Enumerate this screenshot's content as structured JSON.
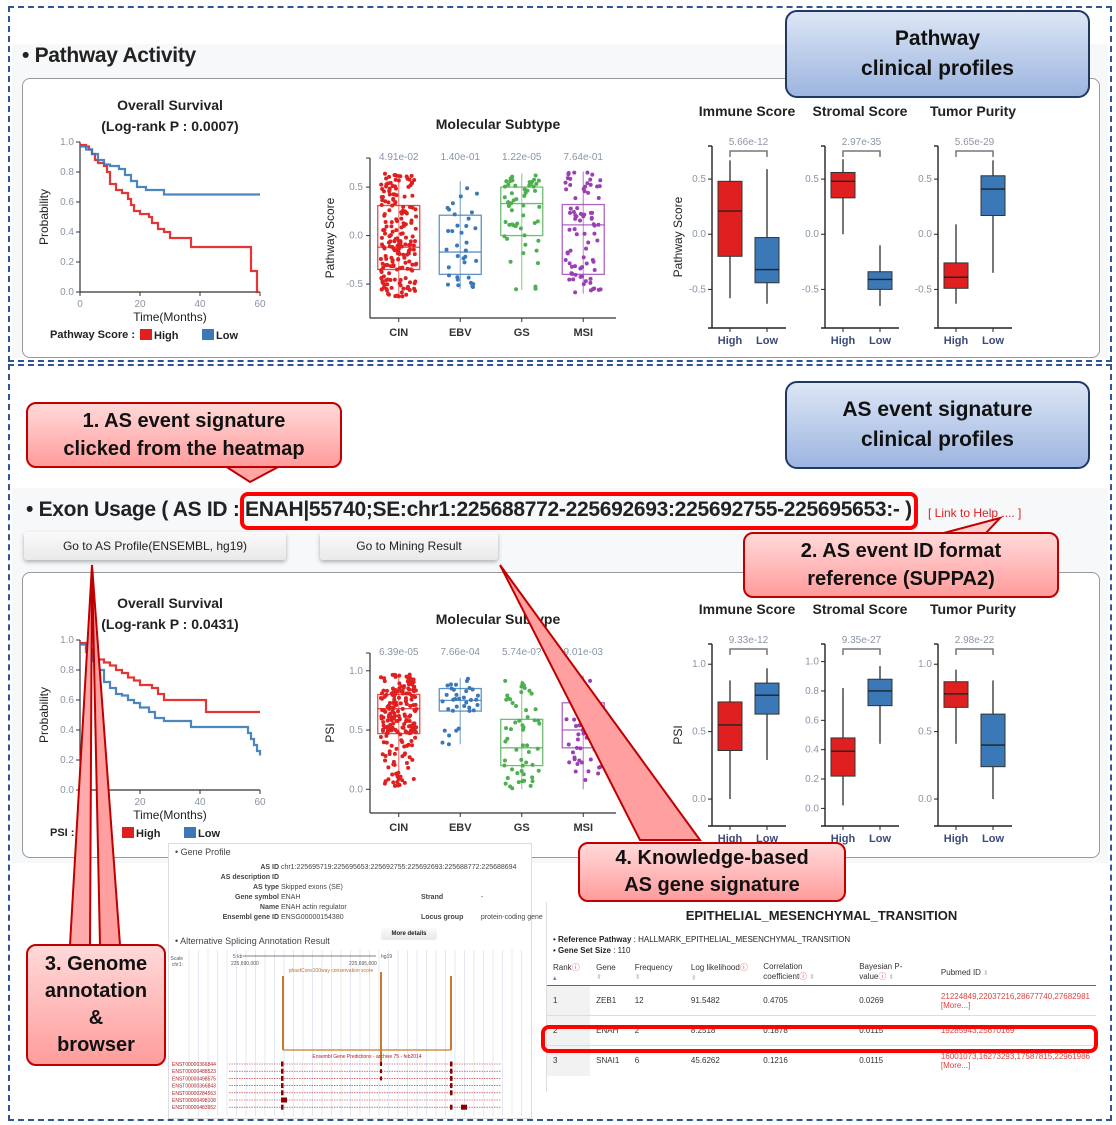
{
  "callouts": {
    "pathway": "Pathway\nclinical profiles",
    "as_event": "AS event signature\nclinical profiles",
    "c1": "1. AS event signature\nclicked from the heatmap",
    "c2": "2. AS event ID format\nreference (SUPPA2)",
    "c3": "3. Genome\nannotation\n&\nbrowser",
    "c4": "4. Knowledge-based\nAS gene signature"
  },
  "pathway_section": {
    "title": "• Pathway Activity"
  },
  "exon_section": {
    "title_prefix": "• Exon Usage ( AS ID : ",
    "as_id": "ENAH|55740;SE:chr1:225688772-225692693:225692755-225695653:-",
    "title_suffix": " )",
    "help_link": "[ Link to Help .... ]",
    "btn_profile": "Go to AS Profile(ENSEMBL, hg19)",
    "btn_mining": "Go to Mining Result"
  },
  "colors": {
    "high": "#e02020",
    "low": "#3a78b8",
    "cin": "#e02020",
    "ebv": "#3a78b8",
    "gs": "#4caf50",
    "msi": "#9b3fb5",
    "callout_red": "#ff9c9c",
    "callout_blue": "#9db5e0"
  },
  "chart_data": [
    {
      "id": "pw_km",
      "type": "line",
      "title": "Overall Survival",
      "subtitle": "(Log-rank P : 0.0007)",
      "xlabel": "Time(Months)",
      "ylabel": "Probability",
      "xlim": [
        0,
        60
      ],
      "ylim": [
        0,
        1.0
      ],
      "xticks": [
        0,
        20,
        40,
        60
      ],
      "yticks": [
        0.0,
        0.2,
        0.4,
        0.6,
        0.8,
        1.0
      ],
      "legend_label": "Pathway Score :",
      "series": [
        {
          "name": "High",
          "color": "#e02020",
          "x": [
            0,
            2,
            3,
            4,
            5,
            6,
            8,
            9,
            10,
            12,
            14,
            16,
            17,
            18,
            20,
            23,
            24,
            26,
            28,
            30,
            33,
            37,
            40,
            43,
            50,
            57,
            58,
            59,
            59.5
          ],
          "y": [
            0.98,
            0.97,
            0.95,
            0.92,
            0.88,
            0.86,
            0.84,
            0.8,
            0.72,
            0.68,
            0.66,
            0.62,
            0.58,
            0.54,
            0.52,
            0.5,
            0.46,
            0.42,
            0.4,
            0.36,
            0.36,
            0.3,
            0.3,
            0.3,
            0.3,
            0.14,
            0.14,
            0.0,
            0.0
          ]
        },
        {
          "name": "Low",
          "color": "#3a78b8",
          "x": [
            0,
            2,
            4,
            6,
            8,
            10,
            13,
            15,
            17,
            19,
            22,
            26,
            28,
            35,
            45,
            60
          ],
          "y": [
            0.97,
            0.95,
            0.92,
            0.88,
            0.85,
            0.84,
            0.82,
            0.78,
            0.74,
            0.7,
            0.68,
            0.68,
            0.65,
            0.65,
            0.65,
            0.65
          ]
        }
      ]
    },
    {
      "id": "pw_subtype",
      "type": "scatter",
      "title": "Molecular Subtype",
      "ylabel": "Pathway Score",
      "ylim": [
        -0.85,
        0.8
      ],
      "yticks": [
        -0.5,
        0.0,
        0.5
      ],
      "categories": [
        "CIN",
        "EBV",
        "GS",
        "MSI"
      ],
      "pvalues": [
        "4.91e-02",
        "1.40e-01",
        "1.22e-05",
        "7.64e-01"
      ],
      "boxes": [
        {
          "q1": -0.35,
          "median": -0.12,
          "q3": 0.31,
          "min": -0.65,
          "max": 0.64,
          "n": 200
        },
        {
          "q1": -0.4,
          "median": -0.17,
          "q3": 0.21,
          "min": -0.55,
          "max": 0.56,
          "n": 35
        },
        {
          "q1": 0.0,
          "median": 0.33,
          "q3": 0.5,
          "min": -0.56,
          "max": 0.64,
          "n": 55
        },
        {
          "q1": -0.4,
          "median": 0.11,
          "q3": 0.32,
          "min": -0.6,
          "max": 0.66,
          "n": 80
        }
      ]
    },
    {
      "id": "pw_clin",
      "type": "box",
      "ylabel": "Pathway Score",
      "ylim": [
        -0.85,
        0.8
      ],
      "yticks": [
        -0.5,
        0.0,
        0.5
      ],
      "categories": [
        "High",
        "Low"
      ],
      "panels": [
        {
          "title": "Immune Score",
          "pvalue": "5.66e-12",
          "boxes": [
            {
              "q1": -0.2,
              "median": 0.21,
              "q3": 0.48,
              "min": -0.58,
              "max": 0.67
            },
            {
              "q1": -0.44,
              "median": -0.32,
              "q3": -0.03,
              "min": -0.63,
              "max": 0.59
            }
          ]
        },
        {
          "title": "Stromal Score",
          "pvalue": "2.97e-35",
          "boxes": [
            {
              "q1": 0.33,
              "median": 0.48,
              "q3": 0.56,
              "min": 0.0,
              "max": 0.68
            },
            {
              "q1": -0.5,
              "median": -0.41,
              "q3": -0.34,
              "min": -0.65,
              "max": -0.1
            }
          ]
        },
        {
          "title": "Tumor Purity",
          "pvalue": "5.65e-29",
          "boxes": [
            {
              "q1": -0.49,
              "median": -0.39,
              "q3": -0.26,
              "min": -0.63,
              "max": 0.09
            },
            {
              "q1": 0.17,
              "median": 0.41,
              "q3": 0.53,
              "min": -0.35,
              "max": 0.67
            }
          ]
        }
      ]
    },
    {
      "id": "ex_km",
      "type": "line",
      "title": "Overall Survival",
      "subtitle": "(Log-rank P : 0.0431)",
      "xlabel": "Time(Months)",
      "ylabel": "Probability",
      "xlim": [
        0,
        60
      ],
      "ylim": [
        0,
        1.0
      ],
      "xticks": [
        0,
        20,
        40,
        60
      ],
      "yticks": [
        0.0,
        0.2,
        0.4,
        0.6,
        0.8,
        1.0
      ],
      "legend_label": "PSI :",
      "series": [
        {
          "name": "High",
          "color": "#e02020",
          "x": [
            0,
            2,
            4,
            6,
            8,
            10,
            12,
            14,
            16,
            18,
            20,
            24,
            26,
            28,
            35,
            42,
            50,
            60
          ],
          "y": [
            0.98,
            0.94,
            0.9,
            0.87,
            0.85,
            0.83,
            0.8,
            0.78,
            0.75,
            0.73,
            0.7,
            0.68,
            0.64,
            0.6,
            0.6,
            0.52,
            0.52,
            0.52
          ]
        },
        {
          "name": "Low",
          "color": "#3a78b8",
          "x": [
            0,
            2,
            4,
            6,
            8,
            10,
            12,
            14,
            16,
            18,
            20,
            23,
            25,
            28,
            32,
            37,
            45,
            55,
            56,
            57,
            58,
            59,
            60
          ],
          "y": [
            0.97,
            0.92,
            0.86,
            0.8,
            0.72,
            0.68,
            0.64,
            0.63,
            0.6,
            0.58,
            0.55,
            0.52,
            0.48,
            0.46,
            0.46,
            0.42,
            0.42,
            0.42,
            0.38,
            0.34,
            0.3,
            0.26,
            0.23
          ]
        }
      ]
    },
    {
      "id": "ex_subtype",
      "type": "scatter",
      "title": "Molecular Subtype",
      "ylabel": "PSI",
      "ylim": [
        -0.2,
        1.15
      ],
      "yticks": [
        0.0,
        0.5,
        1.0
      ],
      "categories": [
        "CIN",
        "EBV",
        "GS",
        "MSI"
      ],
      "pvalues": [
        "6.39e-05",
        "7.66e-04",
        "5.74e-0?",
        "9.01e-03"
      ],
      "boxes": [
        {
          "q1": 0.47,
          "median": 0.68,
          "q3": 0.8,
          "min": 0.02,
          "max": 0.97,
          "n": 200
        },
        {
          "q1": 0.66,
          "median": 0.75,
          "q3": 0.85,
          "min": 0.38,
          "max": 0.94,
          "n": 35
        },
        {
          "q1": 0.2,
          "median": 0.35,
          "q3": 0.59,
          "min": 0.0,
          "max": 0.92,
          "n": 55
        },
        {
          "q1": 0.35,
          "median": 0.5,
          "q3": 0.73,
          "min": 0.0,
          "max": 0.96,
          "n": 60
        }
      ]
    },
    {
      "id": "ex_clin",
      "type": "box",
      "ylabel": "PSI",
      "categories": [
        "High",
        "Low"
      ],
      "panels": [
        {
          "title": "Immune Score",
          "pvalue": "9.33e-12",
          "ylim": [
            -0.2,
            1.15
          ],
          "yticks": [
            0.0,
            0.5,
            1.0
          ],
          "boxes": [
            {
              "q1": 0.36,
              "median": 0.55,
              "q3": 0.72,
              "min": 0.0,
              "max": 0.88
            },
            {
              "q1": 0.63,
              "median": 0.77,
              "q3": 0.86,
              "min": 0.29,
              "max": 0.97
            }
          ]
        },
        {
          "title": "Stromal Score",
          "pvalue": "9.35e-27",
          "ylim": [
            -0.12,
            1.12
          ],
          "yticks": [
            0.0,
            0.2,
            0.4,
            0.6,
            0.8,
            1.0
          ],
          "boxes": [
            {
              "q1": 0.22,
              "median": 0.39,
              "q3": 0.48,
              "min": 0.02,
              "max": 0.82
            },
            {
              "q1": 0.7,
              "median": 0.8,
              "q3": 0.88,
              "min": 0.44,
              "max": 0.97
            }
          ]
        },
        {
          "title": "Tumor Purity",
          "pvalue": "2.98e-22",
          "ylim": [
            -0.2,
            1.15
          ],
          "yticks": [
            0.0,
            0.5,
            1.0
          ],
          "boxes": [
            {
              "q1": 0.68,
              "median": 0.78,
              "q3": 0.87,
              "min": 0.41,
              "max": 0.96
            },
            {
              "q1": 0.24,
              "median": 0.4,
              "q3": 0.63,
              "min": 0.0,
              "max": 0.88
            }
          ]
        }
      ]
    }
  ],
  "gene_profile": {
    "section_title": "Gene Profile",
    "rows": [
      {
        "k": "AS ID",
        "v": "chr1:225695719:225695653:225692755:225692693:225688772:225688694"
      },
      {
        "k": "AS description ID",
        "v": ""
      },
      {
        "k": "AS type",
        "v": "Skipped exons (SE)"
      },
      {
        "k": "Gene symbol",
        "v": "ENAH",
        "k2": "Strand",
        "v2": "-"
      },
      {
        "k": "Name",
        "v": "ENAH actin regulator"
      },
      {
        "k": "Ensembl gene ID",
        "v": "ENSG00000154380",
        "k2": "Locus group",
        "v2": "protein-coding gene"
      }
    ],
    "more_details": "More details",
    "annotation_title": "Alternative Splicing Annotation Result",
    "browser": {
      "scale_label": "Scale",
      "chr_label": "chr1:",
      "scale_text": "5 kb",
      "genome": "hg19",
      "pos_left": "225,690,000",
      "pos_right": "225,695,000",
      "track1": "phastCons100way conservation score",
      "track2": "Ensembl Gene Predictions - archive 75 - feb2014",
      "transcripts": [
        "ENST00000366844",
        "ENST00000488523",
        "ENST00000498575",
        "ENST00000366843",
        "ENST00000284563",
        "ENST00000498108",
        "ENST00000483952"
      ]
    }
  },
  "ems_table": {
    "title": "EPITHELIAL_MESENCHYMAL_TRANSITION",
    "ref_label": "Reference Pathway",
    "ref_value": ": HALLMARK_EPITHELIAL_MESENCHYMAL_TRANSITION",
    "size_label": "Gene Set Size",
    "size_value": ": 110",
    "columns": [
      "Rank",
      "Gene",
      "Frequency",
      "Log likelihood",
      "Correlation coefficient",
      "Bayesian P-value",
      "Pubmed ID"
    ],
    "rows": [
      {
        "rank": "1",
        "gene": "ZEB1",
        "freq": "12",
        "ll": "91.5482",
        "cc": "0.4705",
        "p": "0.0269",
        "pubmed": "21224849,22037216,28677740,27682981",
        "more": "[More...]"
      },
      {
        "rank": "2",
        "gene": "ENAH",
        "freq": "2",
        "ll": "8.2518",
        "cc": "0.1878",
        "p": "0.0115",
        "pubmed": "19285943,25670169",
        "more": ""
      },
      {
        "rank": "3",
        "gene": "SNAI1",
        "freq": "6",
        "ll": "45.6262",
        "cc": "0.1216",
        "p": "0.0115",
        "pubmed": "16001073,16273293,17587815,22961986",
        "more": "[More...]"
      }
    ]
  }
}
